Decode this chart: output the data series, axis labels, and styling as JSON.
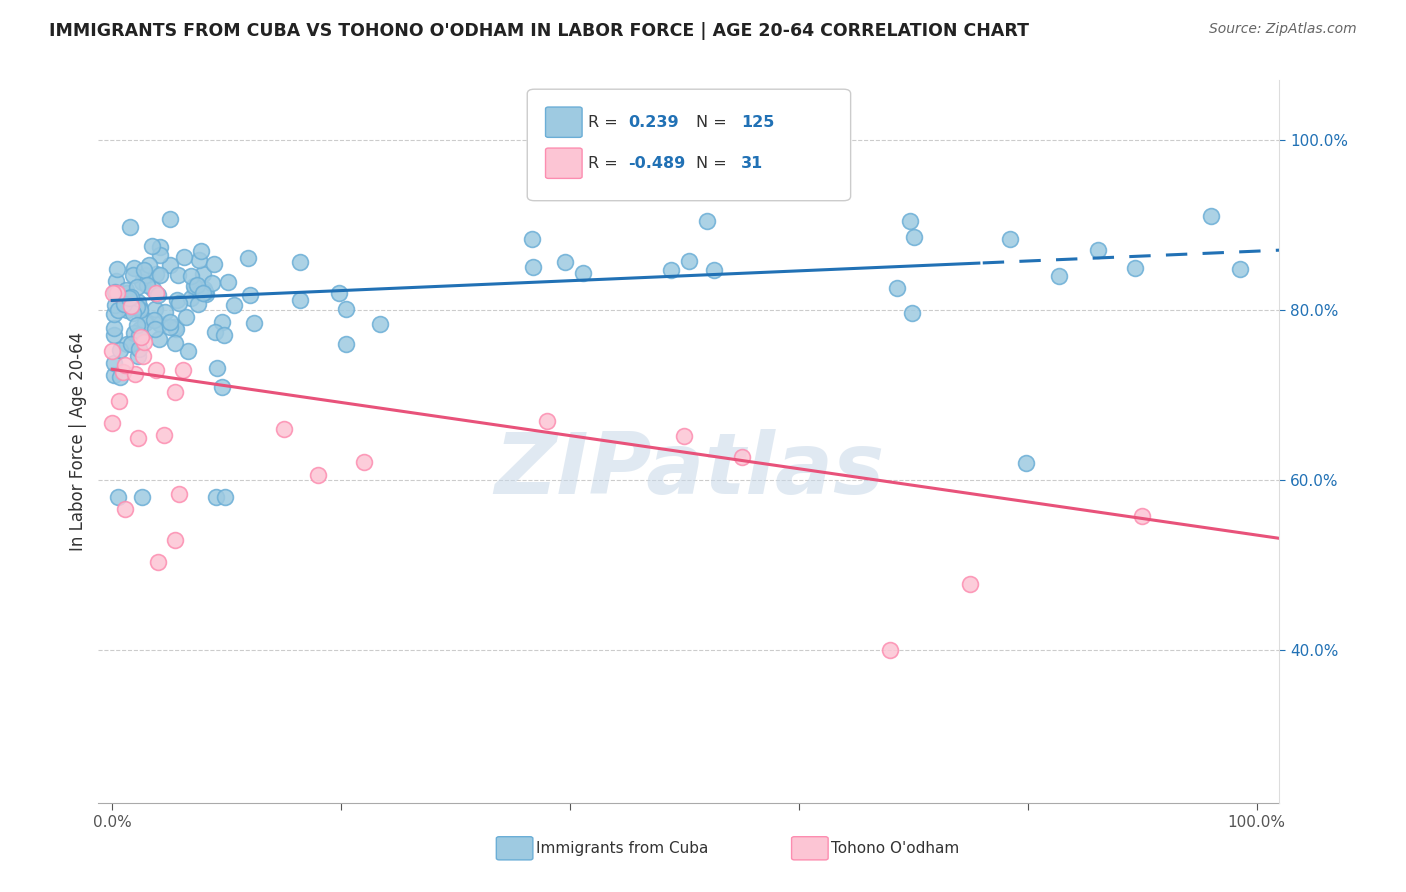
{
  "title": "IMMIGRANTS FROM CUBA VS TOHONO O'ODHAM IN LABOR FORCE | AGE 20-64 CORRELATION CHART",
  "source": "Source: ZipAtlas.com",
  "ylabel": "In Labor Force | Age 20-64",
  "x_tick_labels": [
    "0.0%",
    "",
    "",
    "",
    "",
    "100.0%"
  ],
  "y_tick_labels": [
    "40.0%",
    "60.0%",
    "80.0%",
    "100.0%"
  ],
  "cuba_R": 0.239,
  "cuba_N": 125,
  "odham_R": -0.489,
  "odham_N": 31,
  "cuba_color": "#6baed6",
  "cuba_fill": "#9ecae1",
  "odham_color": "#fc8db0",
  "odham_fill": "#fcc5d4",
  "blue_line_color": "#2171b5",
  "pink_line_color": "#e8527a",
  "watermark": "ZIPatlas",
  "background_color": "#ffffff",
  "grid_color": "#cccccc",
  "legend_R_color": "#2171b5",
  "blue_intercept": 0.811,
  "blue_slope": 0.058,
  "pink_intercept": 0.73,
  "pink_slope": -0.195
}
